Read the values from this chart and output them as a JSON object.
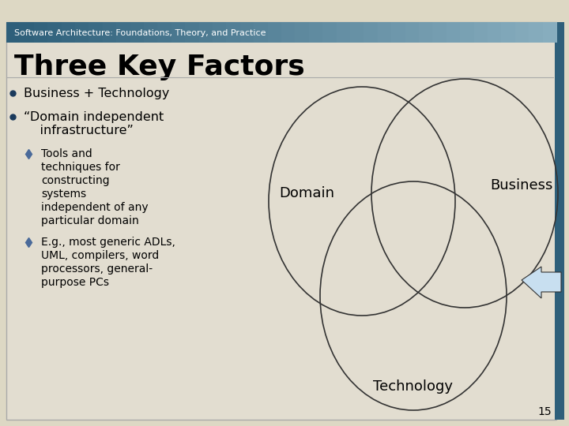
{
  "title_bar_text": "Software Architecture: Foundations, Theory, and Practice",
  "title_bar_color_left": "#2e5f7a",
  "title_bar_color_right": "#8ab0c0",
  "title_bar_text_color": "#ffffff",
  "title_bar_font_size": 8,
  "slide_title": "Three Key Factors",
  "slide_title_font_size": 26,
  "slide_title_color": "#000000",
  "background_color": "#ddd8c4",
  "slide_bg_color": "#e2ddd0",
  "bullet_color": "#1a3a5c",
  "bullet_items": [
    "Business + Technology",
    "“Domain independent\n    infrastructure”"
  ],
  "sub_bullet1_lines": [
    "Tools and",
    "techniques for",
    "constructing",
    "systems",
    "independent of any",
    "particular domain"
  ],
  "sub_bullet2_lines": [
    "E.g., most generic ADLs,",
    "UML, compilers, word",
    "processors, general-",
    "purpose PCs"
  ],
  "label_domain": "Domain",
  "label_business": "Business",
  "label_technology": "Technology",
  "label_font_size": 13,
  "arrow_face_color": "#c8dff0",
  "arrow_edge_color": "#333333",
  "page_number": "15",
  "right_bar_color": "#2e5f7a",
  "circle_lw": 1.2,
  "circle_color": "#333333"
}
